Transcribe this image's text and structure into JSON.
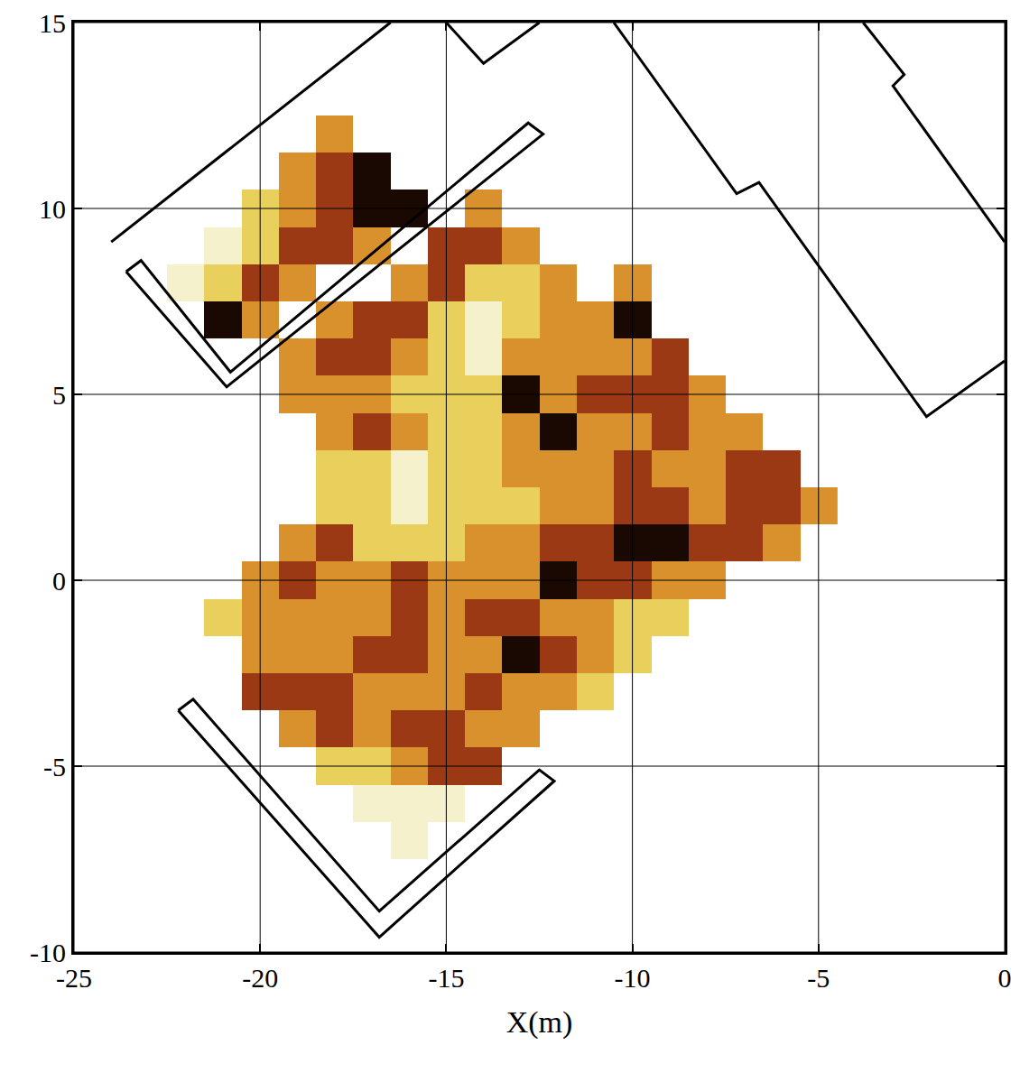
{
  "chart_data": {
    "type": "heatmap",
    "x_label": "X(m)",
    "xlim": [
      -25,
      0
    ],
    "ylim": [
      -10,
      15
    ],
    "xticks": [
      -25,
      -20,
      -15,
      -10,
      -5,
      0
    ],
    "yticks": [
      -10,
      -5,
      0,
      5,
      10,
      15
    ],
    "grid": true,
    "x": [
      -23,
      -22,
      -21,
      -20,
      -19,
      -18,
      -17,
      -16,
      -15,
      -14,
      -13,
      -12,
      -11,
      -10,
      -9,
      -8,
      -7,
      -6,
      -5
    ],
    "y": [
      -7,
      -6,
      -5,
      -4,
      -3,
      -2,
      -1,
      0,
      1,
      2,
      3,
      4,
      5,
      6,
      7,
      8,
      9,
      10,
      11,
      12
    ],
    "z": [
      [
        null,
        null,
        null,
        null,
        null,
        null,
        null,
        0,
        null,
        null,
        null,
        null,
        null,
        null,
        null,
        null,
        null,
        null,
        null
      ],
      [
        null,
        null,
        null,
        null,
        null,
        null,
        0,
        0,
        0,
        null,
        null,
        null,
        null,
        null,
        null,
        null,
        null,
        null,
        null
      ],
      [
        null,
        null,
        null,
        null,
        null,
        1,
        1,
        2,
        3,
        3,
        null,
        null,
        null,
        null,
        null,
        null,
        null,
        null,
        null
      ],
      [
        null,
        null,
        null,
        null,
        2,
        3,
        2,
        3,
        3,
        2,
        2,
        null,
        null,
        null,
        null,
        null,
        null,
        null,
        null
      ],
      [
        null,
        null,
        null,
        3,
        3,
        3,
        2,
        2,
        2,
        3,
        2,
        2,
        1,
        null,
        null,
        null,
        null,
        null,
        null
      ],
      [
        null,
        null,
        null,
        2,
        2,
        2,
        3,
        3,
        2,
        2,
        4,
        3,
        2,
        1,
        null,
        null,
        null,
        null,
        null
      ],
      [
        null,
        null,
        1,
        2,
        2,
        2,
        2,
        3,
        2,
        3,
        3,
        2,
        2,
        1,
        1,
        null,
        null,
        null,
        null
      ],
      [
        null,
        null,
        null,
        2,
        3,
        2,
        2,
        3,
        2,
        2,
        2,
        4,
        3,
        3,
        2,
        2,
        null,
        null,
        null
      ],
      [
        null,
        null,
        null,
        null,
        2,
        3,
        1,
        1,
        1,
        2,
        2,
        3,
        3,
        4,
        4,
        3,
        3,
        2,
        null
      ],
      [
        null,
        null,
        null,
        null,
        null,
        1,
        1,
        0,
        1,
        1,
        1,
        2,
        2,
        3,
        3,
        2,
        3,
        3,
        2
      ],
      [
        null,
        null,
        null,
        null,
        null,
        1,
        1,
        0,
        1,
        1,
        2,
        2,
        2,
        3,
        2,
        2,
        3,
        3,
        null
      ],
      [
        null,
        null,
        null,
        null,
        null,
        2,
        3,
        2,
        1,
        1,
        2,
        4,
        2,
        2,
        3,
        2,
        2,
        null,
        null
      ],
      [
        null,
        null,
        null,
        null,
        2,
        2,
        2,
        1,
        1,
        1,
        4,
        2,
        3,
        3,
        3,
        2,
        null,
        null,
        null
      ],
      [
        null,
        null,
        null,
        null,
        2,
        3,
        3,
        2,
        1,
        0,
        2,
        2,
        2,
        2,
        3,
        null,
        null,
        null,
        null
      ],
      [
        null,
        null,
        4,
        2,
        null,
        2,
        3,
        3,
        1,
        0,
        1,
        2,
        2,
        4,
        null,
        null,
        null,
        null,
        null
      ],
      [
        null,
        0,
        1,
        3,
        2,
        null,
        null,
        2,
        3,
        1,
        1,
        2,
        null,
        2,
        null,
        null,
        null,
        null,
        null
      ],
      [
        null,
        null,
        0,
        1,
        3,
        3,
        2,
        null,
        3,
        3,
        2,
        null,
        null,
        null,
        null,
        null,
        null,
        null,
        null
      ],
      [
        null,
        null,
        null,
        1,
        2,
        3,
        4,
        4,
        null,
        2,
        null,
        null,
        null,
        null,
        null,
        null,
        null,
        null,
        null
      ],
      [
        null,
        null,
        null,
        null,
        2,
        3,
        4,
        null,
        null,
        null,
        null,
        null,
        null,
        null,
        null,
        null,
        null,
        null,
        null
      ],
      [
        null,
        null,
        null,
        null,
        null,
        2,
        null,
        null,
        null,
        null,
        null,
        null,
        null,
        null,
        null,
        null,
        null,
        null,
        null
      ]
    ],
    "outlines": [
      {
        "x": [
          -24,
          -16.5
        ],
        "y": [
          9.1,
          15
        ]
      },
      {
        "x": [
          -23.6,
          -20.9,
          -12.4,
          -12.8,
          -20.8,
          -23.2,
          -23.6
        ],
        "y": [
          8.3,
          5.2,
          12.0,
          12.3,
          5.6,
          8.6,
          8.3
        ]
      },
      {
        "x": [
          -15,
          -14,
          -12.5
        ],
        "y": [
          15,
          13.9,
          15
        ]
      },
      {
        "x": [
          -10.5,
          -7.2,
          -6.6,
          -2.1,
          0
        ],
        "y": [
          15,
          10.4,
          10.7,
          4.4,
          5.9
        ]
      },
      {
        "x": [
          -3.8,
          -2.7,
          -3,
          0
        ],
        "y": [
          15,
          13.6,
          13.3,
          9.1
        ]
      },
      {
        "x": [
          -22.2,
          -16.8,
          -12.1,
          -12.5,
          -16.8,
          -21.8,
          -22.2
        ],
        "y": [
          -3.5,
          -9.6,
          -5.4,
          -5.1,
          -8.9,
          -3.2,
          -3.5
        ]
      }
    ]
  }
}
